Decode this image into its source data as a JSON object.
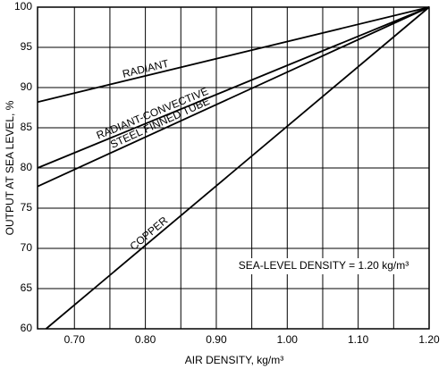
{
  "chart_data": {
    "type": "line",
    "xlabel": "AIR DENSITY, kg/m³",
    "ylabel": "OUTPUT AT SEA LEVEL, %",
    "annotation": "SEA-LEVEL DENSITY = 1.20 kg/m³",
    "xlim": [
      0.648,
      1.2
    ],
    "ylim": [
      60,
      100
    ],
    "xticks": [
      {
        "value": 0.7,
        "label": "0.70"
      },
      {
        "value": 0.8,
        "label": "0.80"
      },
      {
        "value": 0.9,
        "label": "0.90"
      },
      {
        "value": 1.0,
        "label": "1.00"
      },
      {
        "value": 1.1,
        "label": "1.10"
      },
      {
        "value": 1.2,
        "label": "1.20"
      }
    ],
    "xminor": [
      0.75,
      0.85,
      0.95,
      1.05,
      1.15
    ],
    "yticks": [
      60,
      65,
      70,
      75,
      80,
      85,
      90,
      95,
      100
    ],
    "grid": true,
    "color": "#000000",
    "series": [
      {
        "name": "RADIANT",
        "x": [
          0.648,
          1.2
        ],
        "values": [
          88.2,
          100
        ]
      },
      {
        "name": "RADIANT-CONVECTIVE",
        "x": [
          0.648,
          1.2
        ],
        "values": [
          80.0,
          100
        ]
      },
      {
        "name": "STEEL FINNED TUBE",
        "x": [
          0.648,
          1.2
        ],
        "values": [
          77.7,
          100
        ]
      },
      {
        "name": "COPPER",
        "x": [
          0.66,
          1.2
        ],
        "values": [
          60,
          100
        ]
      }
    ]
  }
}
